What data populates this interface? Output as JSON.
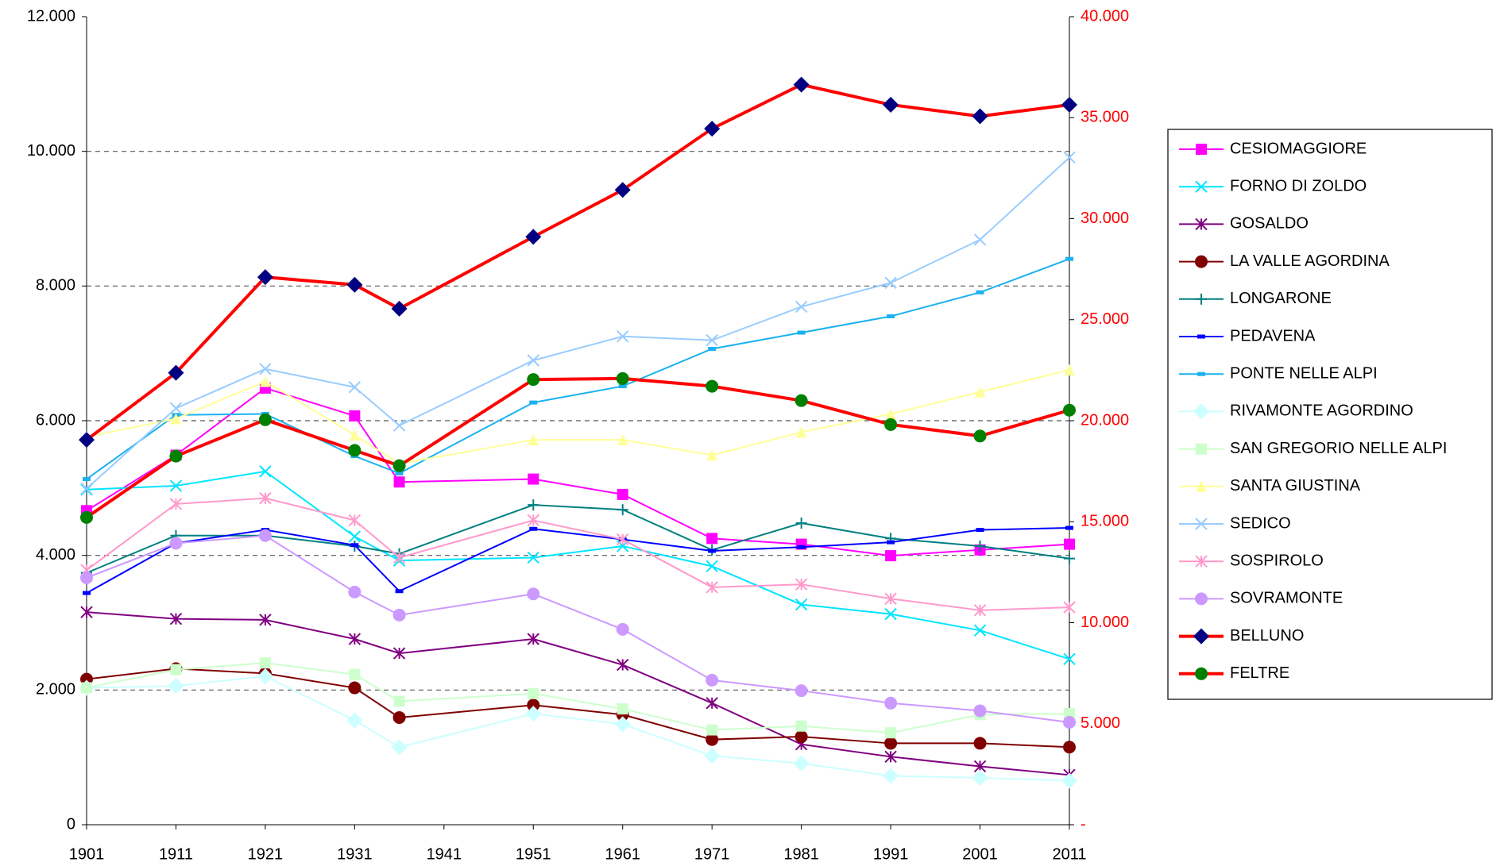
{
  "chart_data": {
    "type": "line",
    "x": [
      1901,
      1911,
      1921,
      1931,
      1936,
      1951,
      1961,
      1971,
      1981,
      1991,
      2001,
      2011
    ],
    "xlim": [
      1901,
      2011
    ],
    "xticks": [
      1901,
      1911,
      1921,
      1931,
      1941,
      1951,
      1961,
      1971,
      1981,
      1991,
      2001,
      2011
    ],
    "ylim": [
      0,
      12000
    ],
    "yticks": [
      0,
      {
        "value": 2000,
        "label": "2.000"
      },
      {
        "value": 4000,
        "label": "4.000"
      },
      {
        "value": 6000,
        "label": "6.000"
      },
      {
        "value": 8000,
        "label": "8.000"
      },
      {
        "value": 10000,
        "label": "10.000"
      },
      {
        "value": 12000,
        "label": "12.000"
      }
    ],
    "y2lim": [
      0,
      40000
    ],
    "y2ticks": [
      {
        "value": 0,
        "label": "-"
      },
      {
        "value": 5000,
        "label": "5.000"
      },
      {
        "value": 10000,
        "label": "10.000"
      },
      {
        "value": 15000,
        "label": "15.000"
      },
      {
        "value": 20000,
        "label": "20.000"
      },
      {
        "value": 25000,
        "label": "25.000"
      },
      {
        "value": 30000,
        "label": "30.000"
      },
      {
        "value": 35000,
        "label": "35.000"
      },
      {
        "value": 40000,
        "label": "40.000"
      }
    ],
    "y2_tick_color": "#ff0000",
    "grid": true,
    "legend": "right",
    "series": [
      {
        "name": "CESIOMAGGIORE",
        "color": "#ff00ff",
        "marker": "square",
        "marker_color": "#ff00ff",
        "values": [
          4664,
          5488,
          6484,
          6071,
          5090,
          5133,
          4905,
          4251,
          4166,
          3995,
          4081,
          4166
        ]
      },
      {
        "name": "FORNO DI ZOLDO",
        "color": "#00e5ff",
        "marker": "x",
        "marker_color": "#00e5ff",
        "values": [
          4977,
          5033,
          5247,
          4280,
          3924,
          3967,
          4138,
          3839,
          3270,
          3128,
          2886,
          2460
        ]
      },
      {
        "name": "GOSALDO",
        "color": "#800080",
        "marker": "asterisk",
        "marker_color": "#800080",
        "values": [
          3157,
          3057,
          3043,
          2758,
          2545,
          2758,
          2375,
          1806,
          1194,
          1010,
          867,
          739
        ]
      },
      {
        "name": "LA VALLE AGORDINA",
        "color": "#800000",
        "marker": "circle",
        "marker_color": "#800000",
        "values": [
          2161,
          2318,
          2247,
          2033,
          1592,
          1777,
          1635,
          1265,
          1308,
          1209,
          1209,
          1152
        ]
      },
      {
        "name": "LONGARONE",
        "color": "#008080",
        "marker": "plus",
        "marker_color": "#008080",
        "values": [
          3740,
          4294,
          4294,
          4138,
          4024,
          4749,
          4678,
          4081,
          4479,
          4251,
          4138,
          3953
        ]
      },
      {
        "name": "PEDAVENA",
        "color": "#0000ff",
        "marker": "dash",
        "marker_color": "#0000ff",
        "values": [
          3441,
          4180,
          4379,
          4152,
          3469,
          4394,
          4237,
          4067,
          4123,
          4195,
          4379,
          4408
        ]
      },
      {
        "name": "PONTE NELLE ALPI",
        "color": "#1ab2f0",
        "marker": "dash",
        "marker_color": "#1ab2f0",
        "values": [
          5133,
          6086,
          6100,
          5474,
          5218,
          6270,
          6512,
          7067,
          7308,
          7550,
          7906,
          8403
        ]
      },
      {
        "name": "RIVAMONTE AGORDINO",
        "color": "#ccffff",
        "marker": "diamond",
        "marker_color": "#ccffff",
        "values": [
          2033,
          2062,
          2204,
          1550,
          1152,
          1649,
          1493,
          1024,
          910,
          725,
          697,
          654
        ]
      },
      {
        "name": "SAN GREGORIO NELLE ALPI",
        "color": "#ccffcc",
        "marker": "square",
        "marker_color": "#ccffcc",
        "values": [
          2033,
          2303,
          2403,
          2232,
          1834,
          1948,
          1720,
          1408,
          1465,
          1365,
          1635,
          1649
        ]
      },
      {
        "name": "SANTA GIUSTINA",
        "color": "#ffff99",
        "marker": "triangle",
        "marker_color": "#ffff99",
        "values": [
          5759,
          6029,
          6583,
          5787,
          5360,
          5716,
          5716,
          5488,
          5830,
          6100,
          6427,
          6754
        ]
      },
      {
        "name": "SEDICO",
        "color": "#99ccff",
        "marker": "x",
        "marker_color": "#99ccff",
        "values": [
          4991,
          6185,
          6768,
          6498,
          5929,
          6896,
          7252,
          7195,
          7692,
          8048,
          8688,
          9910
        ]
      },
      {
        "name": "SOSPIROLO",
        "color": "#ff99cc",
        "marker": "asterisk",
        "marker_color": "#ff99cc",
        "values": [
          3782,
          4763,
          4849,
          4521,
          3967,
          4521,
          4237,
          3526,
          3569,
          3356,
          3185,
          3228
        ]
      },
      {
        "name": "SOVRAMONTE",
        "color": "#cc99ff",
        "marker": "circle",
        "marker_color": "#cc99ff",
        "values": [
          3668,
          4180,
          4294,
          3455,
          3114,
          3427,
          2901,
          2147,
          1991,
          1806,
          1692,
          1521
        ]
      },
      {
        "name": "BELLUNO",
        "color": "#ff0000",
        "marker": "diamond",
        "marker_color": "#000080",
        "axis": "y2",
        "values": [
          19052,
          22370,
          27109,
          26730,
          25545,
          29100,
          31422,
          34455,
          36635,
          35640,
          35071,
          35640
        ]
      },
      {
        "name": "FELTRE",
        "color": "#ff0000",
        "marker": "circle",
        "marker_color": "#008000",
        "axis": "y2",
        "values": [
          15213,
          18246,
          20047,
          18531,
          17773,
          22038,
          22085,
          21706,
          20995,
          19810,
          19242,
          20521
        ]
      }
    ]
  }
}
